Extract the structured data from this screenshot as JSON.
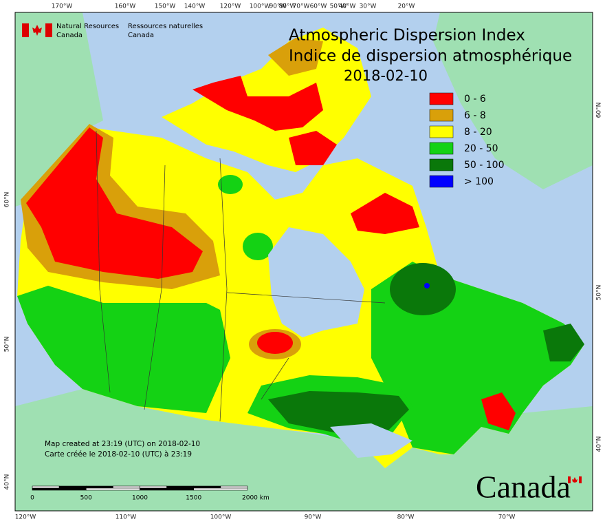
{
  "header": {
    "org_en": "Natural Resources",
    "org_en_2": "Canada",
    "org_fr": "Ressources naturelles",
    "org_fr_2": "Canada"
  },
  "title": {
    "line1": "Atmospheric Dispersion Index",
    "line2": "Indice de dispersion atmosphérique",
    "date": "2018-02-10"
  },
  "legend": [
    {
      "label": "0 - 6",
      "color": "#ff0000"
    },
    {
      "label": "6 - 8",
      "color": "#d9a00a"
    },
    {
      "label": "8 - 20",
      "color": "#ffff00"
    },
    {
      "label": "20 - 50",
      "color": "#14d214"
    },
    {
      "label": "50 - 100",
      "color": "#0a780a"
    },
    {
      "label": "> 100",
      "color": "#0000ff"
    }
  ],
  "graticule": {
    "top": [
      "170°W",
      "160°W",
      "150°W",
      "140°W",
      "120°W",
      "100°W",
      "90°W",
      "80°W",
      "70°W",
      "60°W",
      "50°W",
      "40°W",
      "30°W",
      "20°W"
    ],
    "bottom": [
      "120°W",
      "110°W",
      "100°W",
      "90°W",
      "80°W",
      "70°W"
    ],
    "left": [
      "60°N",
      "50°N",
      "40°N"
    ],
    "right": [
      "60°N",
      "50°N",
      "40°N"
    ]
  },
  "scale_bar": {
    "labels": [
      "0",
      "500",
      "1000",
      "1500",
      "2000 km"
    ]
  },
  "footer": {
    "created_en": "Map created at 23:19 (UTC) on 2018-02-10",
    "created_fr": "Carte créée le 2018-02-10 (UTC) à 23:19"
  },
  "wordmark": "Canada"
}
